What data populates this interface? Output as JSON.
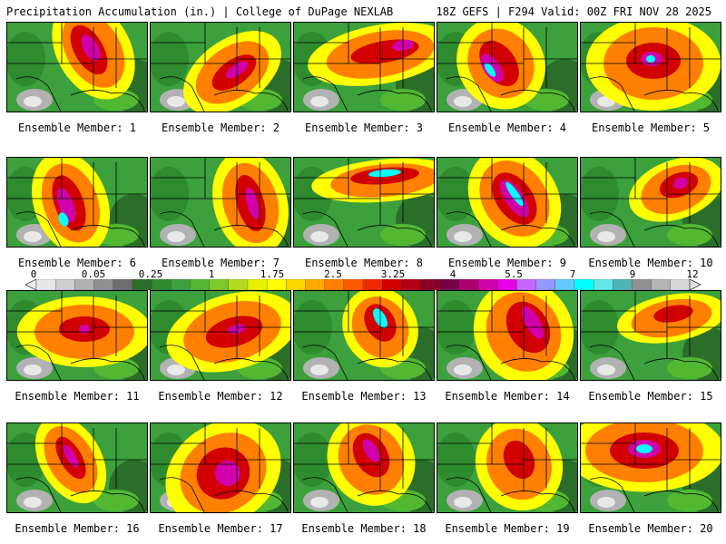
{
  "header": {
    "left": "Precipitation Accumulation (in.) | College of DuPage NEXLAB",
    "right": "18Z GEFS | F294 Valid: 00Z FRI NOV 28 2025"
  },
  "colorbar": {
    "labels": [
      "0",
      "0.05",
      "0.25",
      "1",
      "1.75",
      "2.5",
      "3.25",
      "4",
      "5.5",
      "7",
      "9",
      "12"
    ],
    "colors": [
      "#e8e8e8",
      "#cfcfcf",
      "#b2b2b2",
      "#8f8f8f",
      "#6e6e6e",
      "#2a6e2a",
      "#2e8b2e",
      "#3ca03c",
      "#52b832",
      "#7cc828",
      "#b4dc1e",
      "#e6f000",
      "#ffff00",
      "#ffd700",
      "#ffaa00",
      "#ff8000",
      "#ff5a00",
      "#f02800",
      "#d20000",
      "#b40014",
      "#8c0028",
      "#780046",
      "#aa006e",
      "#d200aa",
      "#e600e6",
      "#c864ff",
      "#9696ff",
      "#64c8ff",
      "#00ffff",
      "#64e6e6",
      "#50b4b4",
      "#909090",
      "#b4b4b4",
      "#d8d8d8"
    ]
  },
  "members": [
    {
      "label": "Ensemble Member: 1"
    },
    {
      "label": "Ensemble Member: 2"
    },
    {
      "label": "Ensemble Member: 3"
    },
    {
      "label": "Ensemble Member: 4"
    },
    {
      "label": "Ensemble Member: 5"
    },
    {
      "label": "Ensemble Member: 6"
    },
    {
      "label": "Ensemble Member: 7"
    },
    {
      "label": "Ensemble Member: 8"
    },
    {
      "label": "Ensemble Member: 9"
    },
    {
      "label": "Ensemble Member: 10"
    },
    {
      "label": "Ensemble Member: 11"
    },
    {
      "label": "Ensemble Member: 12"
    },
    {
      "label": "Ensemble Member: 13"
    },
    {
      "label": "Ensemble Member: 14"
    },
    {
      "label": "Ensemble Member: 15"
    },
    {
      "label": "Ensemble Member: 16"
    },
    {
      "label": "Ensemble Member: 17"
    },
    {
      "label": "Ensemble Member: 18"
    },
    {
      "label": "Ensemble Member: 19"
    },
    {
      "label": "Ensemble Member: 20"
    }
  ]
}
